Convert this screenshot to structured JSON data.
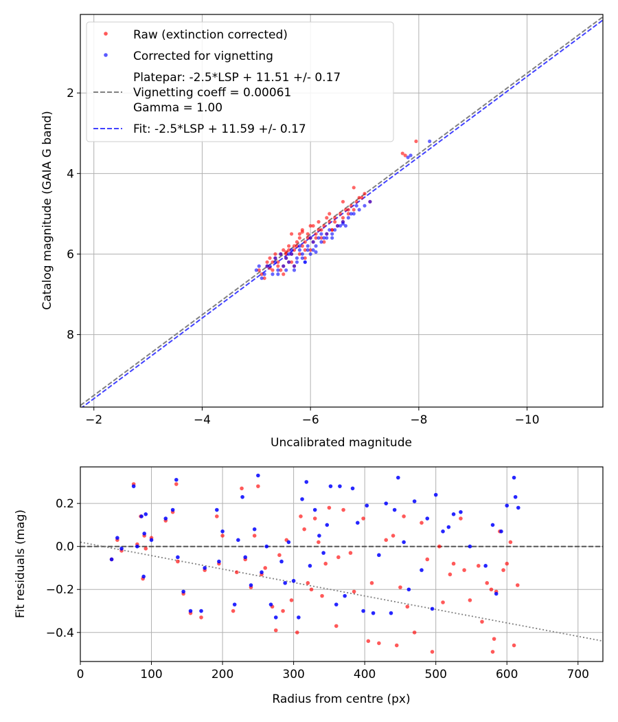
{
  "chart_data": [
    {
      "type": "scatter",
      "title": "",
      "xlabel": "Uncalibrated magnitude",
      "ylabel": "Catalog magnitude (GAIA G band)",
      "xlim": [
        -1.75,
        -11.4
      ],
      "ylim": [
        9.8,
        0.05
      ],
      "x_inverted": true,
      "y_inverted": true,
      "grid": true,
      "xticks": [
        -2,
        -4,
        -6,
        -8,
        -10
      ],
      "xtick_labels": [
        "−2",
        "−4",
        "−6",
        "−8",
        "−10"
      ],
      "yticks": [
        2,
        4,
        6,
        8
      ],
      "ytick_labels": [
        "2",
        "4",
        "6",
        "8"
      ],
      "legend_position": "top-left",
      "legend": [
        {
          "label": "Raw (extinction corrected)",
          "marker": "dot",
          "color": "#ff0000"
        },
        {
          "label": "Corrected for vignetting",
          "marker": "dot",
          "color": "#0000ff"
        },
        {
          "label": "Platepar: -2.5*LSP + 11.51 +/- 0.17",
          "label2": "Vignetting coeff = 0.00061",
          "label3": "Gamma = 1.00",
          "marker": "dashed-line",
          "color": "#808080"
        },
        {
          "label": "Fit: -2.5*LSP + 11.59 +/- 0.17",
          "marker": "dashed-line",
          "color": "#4040ff"
        }
      ],
      "lines": [
        {
          "name": "Platepar",
          "slope": 1.0,
          "intercept": 11.51,
          "color": "#808080",
          "style": "dashed"
        },
        {
          "name": "Fit",
          "slope": 1.0,
          "intercept": 11.59,
          "color": "#4040ff",
          "style": "dashed"
        }
      ],
      "series": [
        {
          "name": "Raw (extinction corrected)",
          "color": "#ff0000",
          "x": [
            -5.1,
            -5.2,
            -5.3,
            -5.35,
            -5.4,
            -5.45,
            -5.5,
            -5.5,
            -5.55,
            -5.6,
            -5.6,
            -5.65,
            -5.7,
            -5.7,
            -5.75,
            -5.8,
            -5.8,
            -5.85,
            -5.9,
            -5.9,
            -5.95,
            -6.0,
            -6.0,
            -6.05,
            -6.1,
            -6.15,
            -6.2,
            -6.25,
            -6.3,
            -6.35,
            -6.4,
            -6.45,
            -6.5,
            -6.55,
            -6.6,
            -6.65,
            -6.7,
            -6.75,
            -6.8,
            -6.85,
            -6.9,
            -7.0,
            -7.1,
            -5.15,
            -5.25,
            -5.45,
            -5.65,
            -5.85,
            -6.05,
            -6.3,
            -6.6,
            -7.7,
            -7.75,
            -7.95,
            -5.3,
            -5.55,
            -5.75,
            -5.95,
            -6.2,
            -6.45,
            -6.7,
            -6.95,
            -5.05,
            -5.4,
            -5.6,
            -5.8,
            -6.1,
            -6.4,
            -5.2,
            -5.5,
            -5.7,
            -5.9,
            -6.25,
            -6.6,
            -5.35,
            -5.65,
            -6.0,
            -6.35,
            -6.8,
            -5.25,
            -5.55,
            -5.85,
            -6.15
          ],
          "y": [
            6.5,
            6.3,
            6.4,
            6.1,
            6.2,
            6.0,
            6.3,
            5.9,
            6.1,
            6.2,
            5.8,
            6.0,
            5.9,
            6.3,
            5.7,
            6.0,
            5.6,
            5.8,
            5.7,
            6.1,
            5.5,
            5.6,
            5.9,
            5.7,
            5.5,
            5.4,
            5.6,
            5.3,
            5.5,
            5.2,
            5.4,
            5.1,
            5.3,
            5.0,
            5.2,
            4.9,
            5.0,
            4.8,
            4.9,
            4.7,
            4.6,
            4.5,
            4.7,
            6.6,
            6.1,
            6.4,
            5.5,
            5.4,
            5.3,
            5.1,
            4.7,
            3.5,
            3.55,
            3.2,
            6.2,
            6.0,
            5.8,
            5.6,
            5.4,
            5.2,
            4.9,
            4.6,
            6.4,
            6.3,
            5.9,
            5.5,
            5.6,
            5.4,
            6.2,
            6.5,
            5.8,
            5.9,
            5.7,
            5.1,
            6.0,
            6.2,
            5.3,
            5.0,
            4.35,
            6.35,
            5.95,
            5.45,
            5.2
          ]
        },
        {
          "name": "Corrected for vignetting",
          "color": "#0000ff",
          "x": [
            -5.0,
            -5.1,
            -5.2,
            -5.3,
            -5.35,
            -5.4,
            -5.5,
            -5.55,
            -5.6,
            -5.65,
            -5.7,
            -5.75,
            -5.8,
            -5.85,
            -5.9,
            -5.95,
            -6.0,
            -6.05,
            -6.1,
            -6.15,
            -6.2,
            -6.3,
            -6.35,
            -6.4,
            -6.5,
            -6.6,
            -6.65,
            -6.7,
            -6.8,
            -6.9,
            -7.0,
            -7.1,
            -5.15,
            -5.45,
            -5.65,
            -5.85,
            -6.05,
            -6.25,
            -6.45,
            -6.75,
            -7.8,
            -7.85,
            -8.2,
            -5.25,
            -5.55,
            -5.75,
            -5.95,
            -6.2,
            -6.55,
            -6.85,
            -5.05,
            -5.35,
            -5.6,
            -5.8,
            -6.0,
            -6.3,
            -5.4,
            -5.7,
            -5.9,
            -6.1,
            -6.4,
            -6.6
          ],
          "y": [
            6.4,
            6.6,
            6.3,
            6.5,
            6.2,
            6.4,
            6.3,
            6.1,
            6.2,
            6.0,
            6.3,
            6.1,
            5.9,
            6.0,
            6.2,
            5.8,
            6.0,
            5.7,
            5.8,
            5.6,
            5.5,
            5.6,
            5.4,
            5.5,
            5.3,
            5.2,
            5.3,
            5.1,
            5.0,
            4.9,
            4.8,
            4.7,
            6.5,
            6.0,
            5.9,
            6.1,
            5.9,
            5.6,
            5.4,
            5.0,
            3.6,
            3.55,
            3.2,
            6.3,
            6.4,
            6.2,
            5.9,
            5.7,
            5.3,
            4.8,
            6.3,
            6.1,
            6.0,
            5.8,
            5.6,
            5.5,
            6.5,
            6.4,
            6.2,
            5.95,
            5.6,
            5.25
          ]
        }
      ]
    },
    {
      "type": "scatter",
      "title": "",
      "xlabel": "Radius from centre (px)",
      "ylabel": "Fit residuals (mag)",
      "xlim": [
        0,
        735
      ],
      "ylim": [
        -0.535,
        0.37
      ],
      "grid": true,
      "xticks": [
        0,
        100,
        200,
        300,
        400,
        500,
        600,
        700
      ],
      "xtick_labels": [
        "0",
        "100",
        "200",
        "300",
        "400",
        "500",
        "600",
        "700"
      ],
      "yticks": [
        0.2,
        0.0,
        -0.2,
        -0.4
      ],
      "ytick_labels": [
        "0.2",
        "0.0",
        "−0.2",
        "−0.4"
      ],
      "reference_lines": [
        {
          "name": "zero",
          "y": 0.0,
          "color": "#555555",
          "style": "dashed"
        },
        {
          "name": "vignetting",
          "x": [
            0,
            735
          ],
          "y": [
            0.02,
            -0.44
          ],
          "color": "#808080",
          "style": "dotted"
        }
      ],
      "series": [
        {
          "name": "Raw (extinction corrected)",
          "color": "#ff0000",
          "x": [
            44,
            52,
            58,
            75,
            80,
            85,
            88,
            90,
            92,
            100,
            120,
            130,
            135,
            137,
            145,
            155,
            170,
            175,
            192,
            195,
            200,
            215,
            220,
            227,
            232,
            240,
            245,
            250,
            255,
            260,
            270,
            275,
            280,
            285,
            290,
            297,
            305,
            310,
            315,
            320,
            325,
            330,
            335,
            340,
            345,
            350,
            360,
            363,
            370,
            380,
            385,
            398,
            405,
            410,
            420,
            430,
            440,
            445,
            450,
            455,
            460,
            470,
            480,
            488,
            495,
            505,
            510,
            520,
            525,
            535,
            540,
            548,
            560,
            565,
            572,
            578,
            580,
            582,
            585,
            590,
            595,
            600,
            605,
            610,
            615
          ],
          "y": [
            -0.06,
            0.03,
            -0.02,
            0.29,
            0.01,
            0.14,
            -0.15,
            0.05,
            -0.01,
            0.04,
            0.12,
            0.16,
            0.29,
            -0.07,
            -0.22,
            -0.31,
            -0.33,
            -0.11,
            0.14,
            -0.08,
            0.05,
            -0.3,
            -0.12,
            0.27,
            -0.06,
            -0.19,
            0.05,
            0.28,
            -0.13,
            -0.1,
            -0.28,
            -0.39,
            -0.04,
            -0.3,
            0.03,
            -0.25,
            -0.4,
            0.14,
            0.08,
            -0.17,
            -0.2,
            0.13,
            0.02,
            -0.23,
            -0.08,
            0.18,
            -0.37,
            -0.05,
            0.17,
            -0.03,
            -0.21,
            0.13,
            -0.44,
            -0.17,
            -0.45,
            0.03,
            0.05,
            -0.46,
            -0.19,
            0.14,
            -0.28,
            -0.4,
            0.11,
            -0.06,
            -0.49,
            0.0,
            -0.26,
            -0.13,
            -0.08,
            0.13,
            -0.11,
            -0.25,
            -0.09,
            -0.35,
            -0.17,
            -0.2,
            -0.49,
            -0.43,
            -0.21,
            0.07,
            -0.11,
            -0.08,
            0.02,
            -0.46,
            -0.18
          ]
        },
        {
          "name": "Corrected for vignetting",
          "color": "#0000ff",
          "x": [
            44,
            52,
            58,
            75,
            80,
            86,
            89,
            90,
            92,
            100,
            120,
            130,
            135,
            137,
            145,
            155,
            170,
            175,
            192,
            195,
            200,
            217,
            222,
            228,
            232,
            240,
            245,
            250,
            255,
            262,
            268,
            275,
            283,
            288,
            293,
            300,
            307,
            312,
            318,
            323,
            330,
            336,
            342,
            347,
            352,
            360,
            365,
            372,
            383,
            390,
            398,
            403,
            412,
            420,
            430,
            437,
            442,
            447,
            455,
            462,
            470,
            480,
            488,
            495,
            500,
            510,
            518,
            525,
            535,
            548,
            570,
            580,
            585,
            592,
            600,
            610,
            612,
            616
          ],
          "y": [
            -0.06,
            0.04,
            -0.01,
            0.28,
            0.0,
            0.14,
            -0.14,
            0.06,
            0.15,
            0.03,
            0.13,
            0.17,
            0.31,
            -0.05,
            -0.21,
            -0.3,
            -0.3,
            -0.1,
            0.17,
            -0.07,
            0.07,
            -0.27,
            0.03,
            0.23,
            -0.05,
            -0.18,
            0.08,
            0.33,
            -0.12,
            0.0,
            -0.27,
            -0.33,
            -0.07,
            -0.17,
            0.02,
            -0.16,
            -0.33,
            0.22,
            0.3,
            -0.09,
            0.17,
            0.05,
            -0.03,
            0.1,
            0.28,
            -0.27,
            0.28,
            -0.23,
            0.27,
            0.11,
            -0.3,
            0.19,
            -0.31,
            -0.04,
            0.2,
            -0.31,
            0.17,
            0.32,
            0.02,
            -0.2,
            0.21,
            -0.11,
            0.13,
            -0.29,
            0.24,
            0.07,
            0.09,
            0.15,
            0.16,
            0.0,
            -0.09,
            0.1,
            -0.22,
            0.07,
            0.19,
            0.32,
            0.23,
            0.18
          ]
        }
      ]
    }
  ]
}
